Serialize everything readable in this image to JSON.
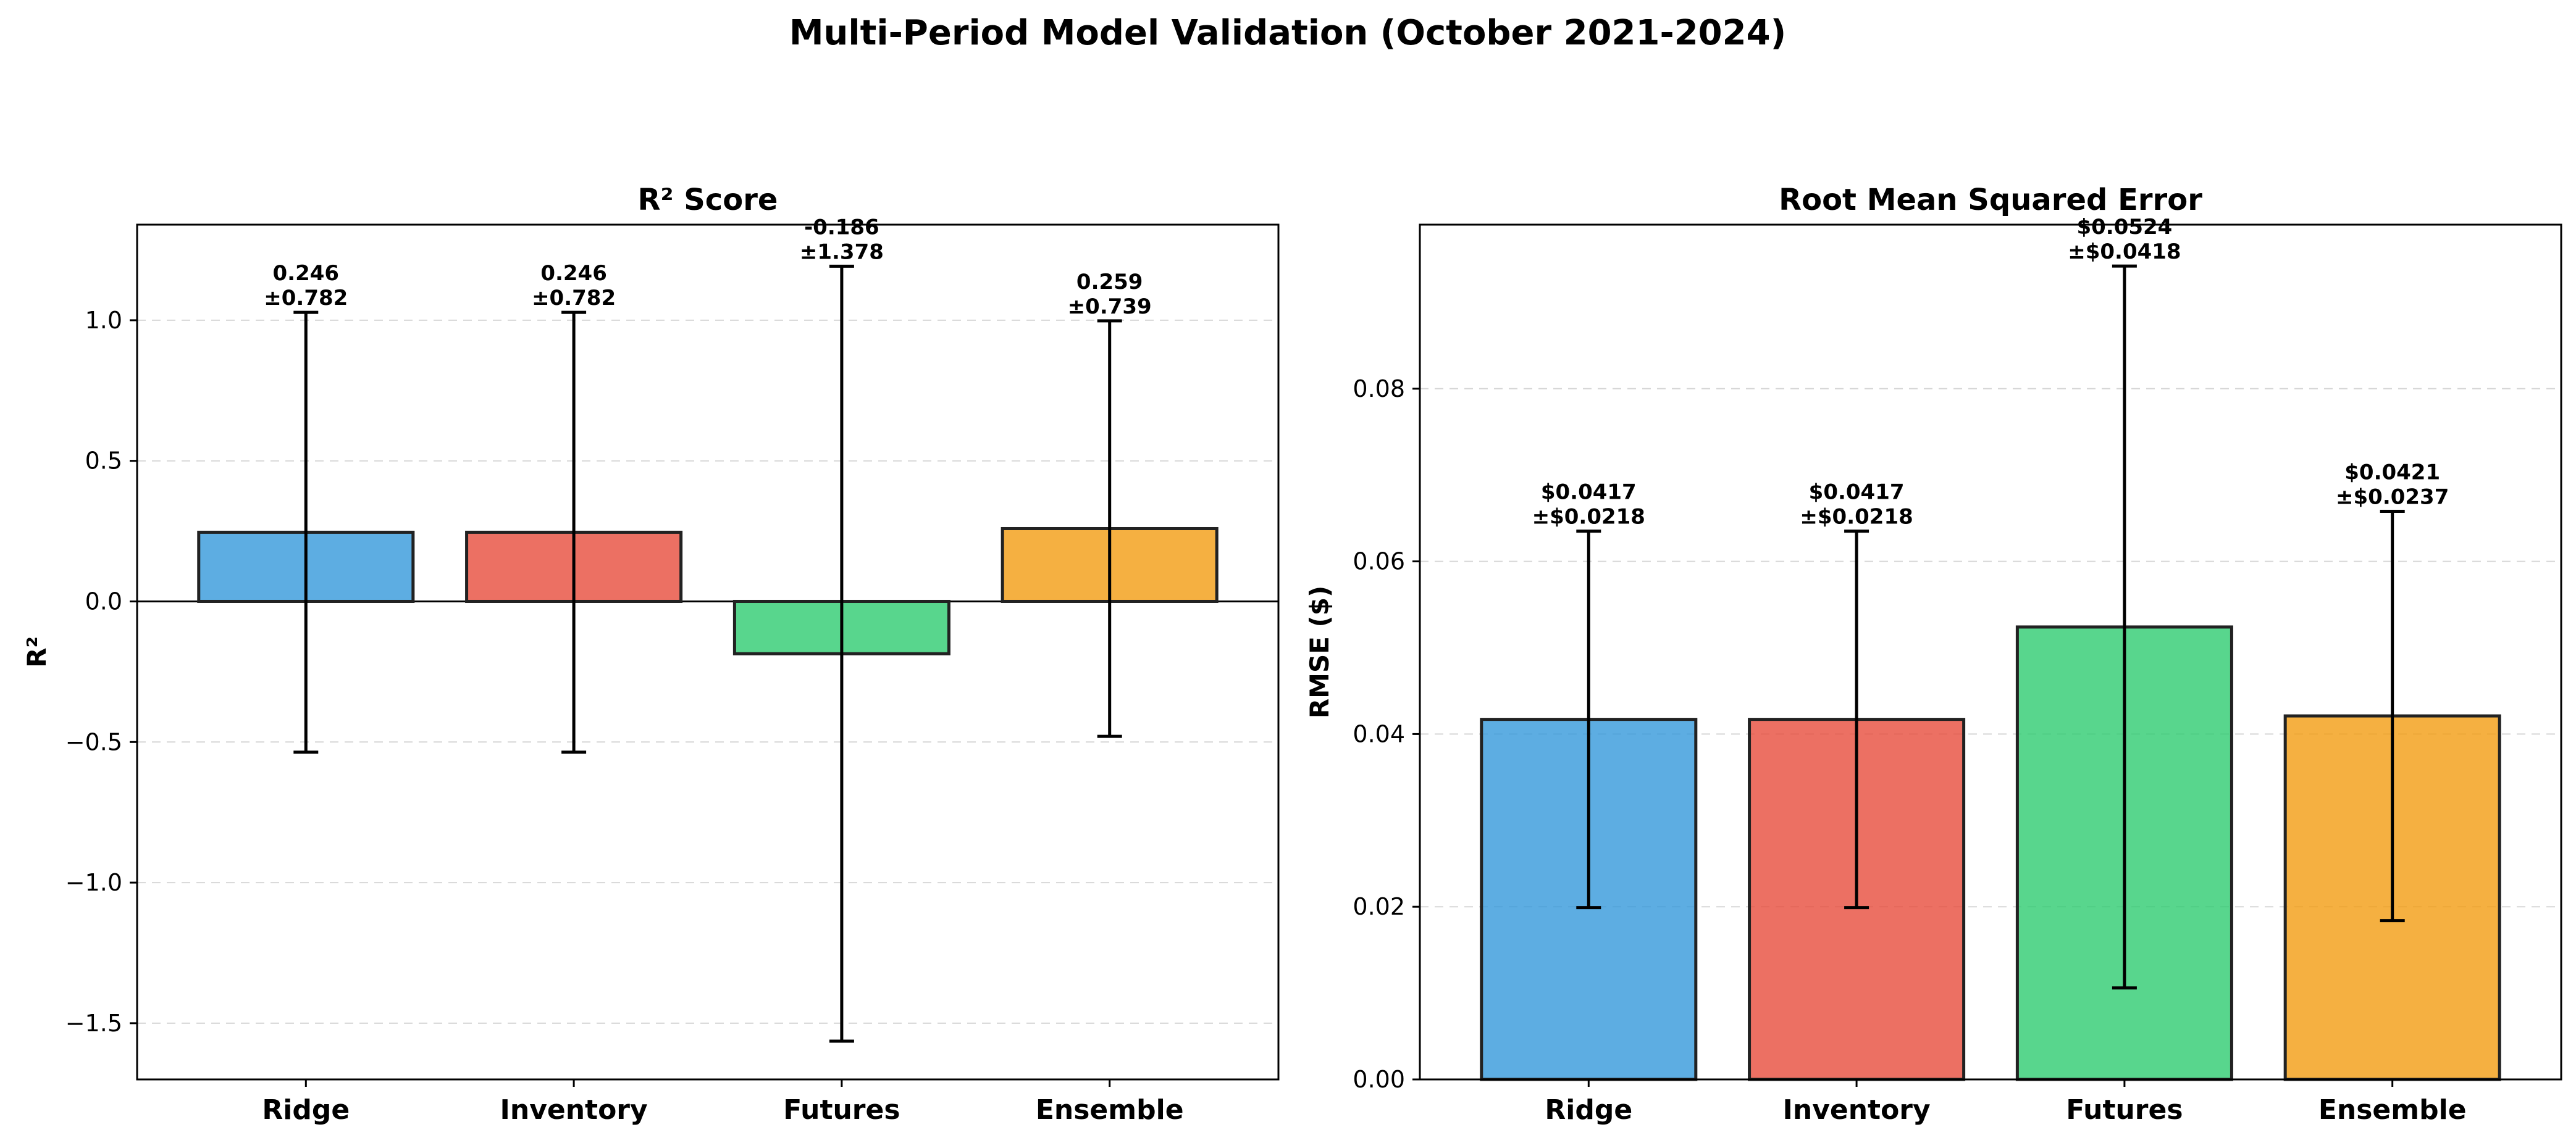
{
  "title": "Multi-Period Model Validation (October 2021-2024)",
  "colors": [
    "#3498db",
    "#e74c3c",
    "#2ecc71",
    "#f39c12"
  ],
  "chart_data": [
    {
      "type": "bar",
      "title": "R² Score",
      "xlabel": "",
      "ylabel": "R²",
      "categories": [
        "Ridge",
        "Inventory",
        "Futures",
        "Ensemble"
      ],
      "values": [
        0.246,
        0.246,
        -0.186,
        0.259
      ],
      "errors": [
        0.782,
        0.782,
        1.378,
        0.739
      ],
      "data_labels": [
        "0.246\n±0.782",
        "0.246\n±0.782",
        "-0.186\n±1.378",
        "0.259\n±0.739"
      ],
      "ylim": [
        -1.7,
        1.34
      ],
      "yticks": [
        -1.5,
        -1.0,
        -0.5,
        0.0,
        0.5,
        1.0
      ],
      "ytick_labels": [
        "−1.5",
        "−1.0",
        "−0.5",
        "0.0",
        "0.5",
        "1.0"
      ],
      "grid": "y, dashed",
      "zero_line": true
    },
    {
      "type": "bar",
      "title": "Root Mean Squared Error",
      "xlabel": "",
      "ylabel": "RMSE ($)",
      "categories": [
        "Ridge",
        "Inventory",
        "Futures",
        "Ensemble"
      ],
      "values": [
        0.0417,
        0.0417,
        0.0524,
        0.0421
      ],
      "errors": [
        0.0218,
        0.0218,
        0.0418,
        0.0237
      ],
      "data_labels": [
        "$0.0417\n±$0.0218",
        "$0.0417\n±$0.0218",
        "$0.0524\n±$0.0418",
        "$0.0421\n±$0.0237"
      ],
      "ylim": [
        0,
        0.099
      ],
      "yticks": [
        0.0,
        0.02,
        0.04,
        0.06,
        0.08
      ],
      "ytick_labels": [
        "0.00",
        "0.02",
        "0.04",
        "0.06",
        "0.08"
      ],
      "grid": "y, dashed"
    }
  ]
}
